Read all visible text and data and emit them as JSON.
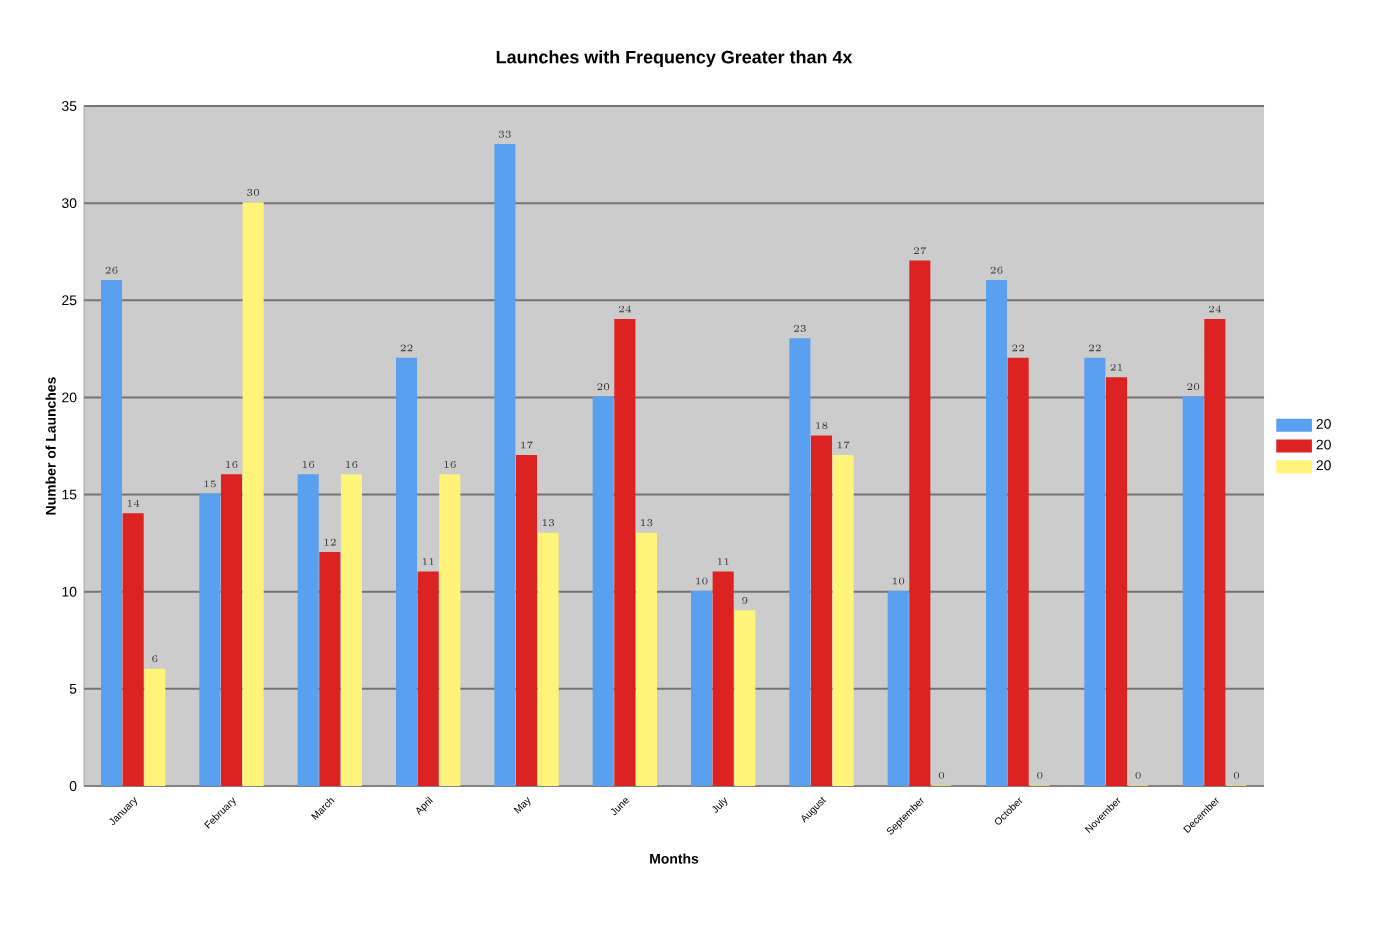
{
  "chart_data": {
    "type": "bar",
    "title": "Launches with Frequency Greater than 4x",
    "xlabel": "Months",
    "ylabel": "Number of Launches",
    "categories": [
      "January",
      "February",
      "March",
      "April",
      "May",
      "June",
      "July",
      "August",
      "September",
      "October",
      "November",
      "December"
    ],
    "series": [
      {
        "name": "20",
        "color": "#5aa0f0",
        "values": [
          26,
          15,
          16,
          22,
          33,
          20,
          10,
          23,
          10,
          26,
          22,
          20
        ]
      },
      {
        "name": "20",
        "color": "#dd2222",
        "values": [
          14,
          16,
          12,
          11,
          17,
          24,
          11,
          18,
          27,
          22,
          21,
          24
        ]
      },
      {
        "name": "20",
        "color": "#fff37a",
        "values": [
          6,
          30,
          16,
          16,
          13,
          13,
          9,
          17,
          0,
          0,
          0,
          0
        ]
      }
    ],
    "ylim": [
      0,
      35
    ],
    "yticks": [
      0,
      5,
      10,
      15,
      20,
      25,
      30,
      35
    ],
    "grid": "y",
    "legend": "right",
    "data_labels": true
  }
}
